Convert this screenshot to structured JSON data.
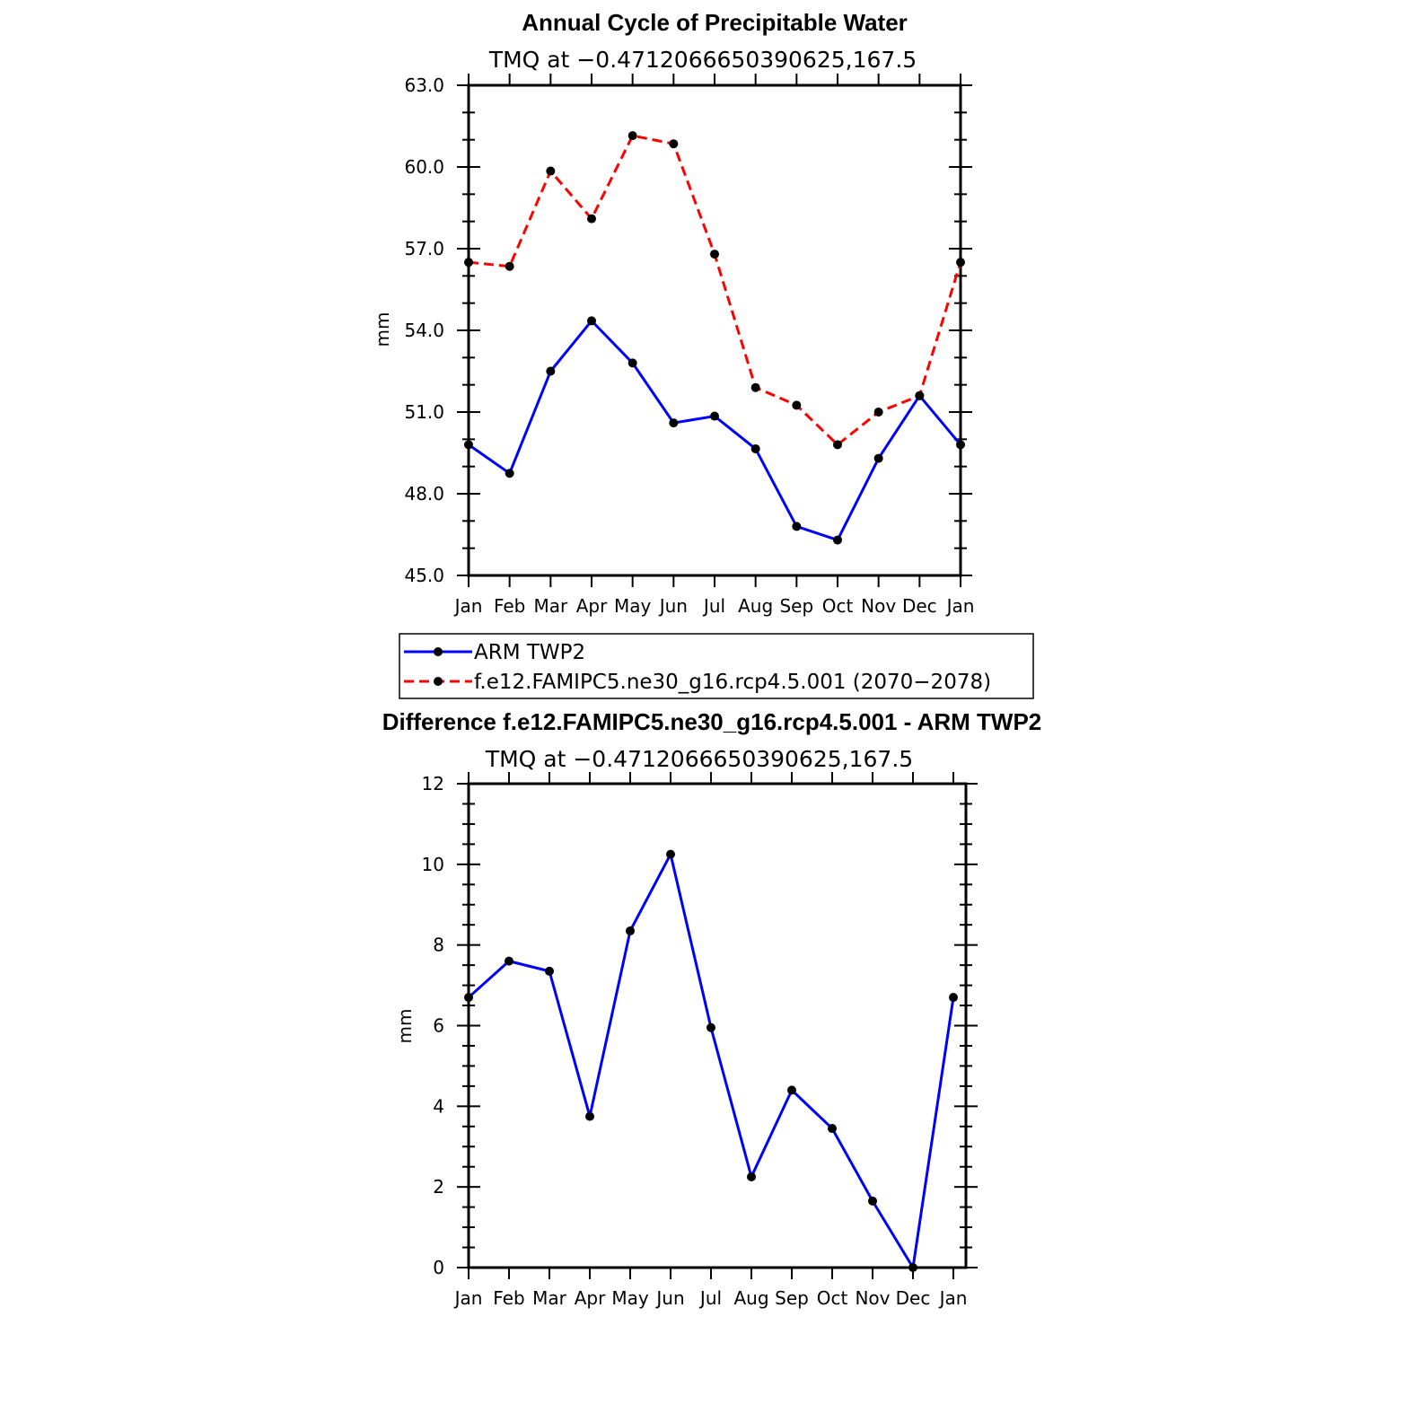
{
  "chart_data": [
    {
      "type": "line",
      "title": "Annual Cycle of Precipitable Water",
      "subtitle": "TMQ at −0.4712066650390625,167.5",
      "ylabel": "mm",
      "xlabel": "",
      "categories": [
        "Jan",
        "Feb",
        "Mar",
        "Apr",
        "May",
        "Jun",
        "Jul",
        "Aug",
        "Sep",
        "Oct",
        "Nov",
        "Dec",
        "Jan"
      ],
      "ylim": [
        45.0,
        63.0
      ],
      "yticks": [
        "45.0",
        "48.0",
        "51.0",
        "54.0",
        "57.0",
        "60.0",
        "63.0"
      ],
      "grid": false,
      "legend_position": "bottom",
      "series": [
        {
          "name": "ARM TWP2",
          "color": "#0000ff",
          "style": "solid",
          "values": [
            49.8,
            48.75,
            52.5,
            54.35,
            52.8,
            50.6,
            50.85,
            49.65,
            46.8,
            46.3,
            49.3,
            51.6,
            49.8
          ]
        },
        {
          "name": "f.e12.FAMIPC5.ne30_g16.rcp4.5.001 (2070−2078)",
          "color": "#ff0000",
          "style": "dashed",
          "values": [
            56.5,
            56.35,
            59.85,
            58.1,
            61.15,
            60.85,
            56.8,
            51.9,
            51.25,
            49.8,
            51.0,
            51.6,
            56.5
          ]
        }
      ]
    },
    {
      "type": "line",
      "title": "Difference f.e12.FAMIPC5.ne30_g16.rcp4.5.001 - ARM TWP2",
      "subtitle": "TMQ at −0.4712066650390625,167.5",
      "ylabel": "mm",
      "xlabel": "",
      "categories": [
        "Jan",
        "Feb",
        "Mar",
        "Apr",
        "May",
        "Jun",
        "Jul",
        "Aug",
        "Sep",
        "Oct",
        "Nov",
        "Dec",
        "Jan"
      ],
      "ylim": [
        0,
        12
      ],
      "yticks": [
        "0",
        "2",
        "4",
        "6",
        "8",
        "10",
        "12"
      ],
      "grid": false,
      "series": [
        {
          "color": "#0000ff",
          "style": "solid",
          "values": [
            6.7,
            7.6,
            7.35,
            3.75,
            8.35,
            10.25,
            5.95,
            2.25,
            4.4,
            3.45,
            1.65,
            0.0,
            6.7
          ]
        }
      ]
    }
  ]
}
